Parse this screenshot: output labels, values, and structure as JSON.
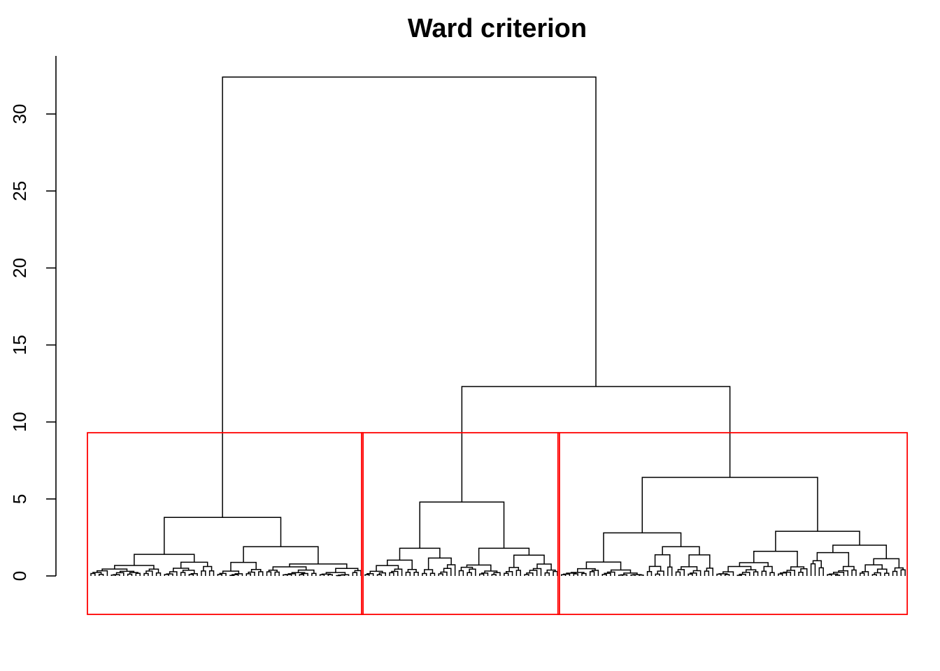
{
  "chart_data": {
    "type": "dendrogram",
    "title": "Ward criterion",
    "xlabel": "",
    "ylabel": "",
    "ylim": [
      0,
      33
    ],
    "y_ticks": [
      0,
      5,
      10,
      15,
      20,
      25,
      30
    ],
    "y_tick_labels": [
      "0",
      "5",
      "10",
      "15",
      "20",
      "25",
      "30"
    ],
    "leaf_count": 200,
    "cut_height": 9.3,
    "cluster_box_color": "#ff0000",
    "line_color": "#000000",
    "clusters": [
      {
        "first_leaf": 0,
        "last_leaf": 66
      },
      {
        "first_leaf": 67,
        "last_leaf": 114
      },
      {
        "first_leaf": 115,
        "last_leaf": 199
      }
    ],
    "merges": [
      {
        "height": 32.4,
        "left": "A",
        "right": "BC"
      },
      {
        "height": 12.3,
        "left": "B",
        "right": "C"
      },
      {
        "height": 3.8,
        "left": "A1",
        "right": "A2",
        "cluster": "A"
      },
      {
        "height": 4.8,
        "left": "B1",
        "right": "B2",
        "cluster": "B"
      },
      {
        "height": 6.4,
        "left": "C1",
        "right": "C2",
        "cluster": "C"
      },
      {
        "height": 1.4,
        "cluster": "A1"
      },
      {
        "height": 1.9,
        "cluster": "A2"
      },
      {
        "height": 1.8,
        "cluster": "B1"
      },
      {
        "height": 1.8,
        "cluster": "B2"
      },
      {
        "height": 2.8,
        "cluster": "C1"
      },
      {
        "height": 2.9,
        "cluster": "C2"
      },
      {
        "height": 1.9,
        "cluster": "C1b"
      },
      {
        "height": 2.0,
        "cluster": "C2b"
      }
    ]
  }
}
